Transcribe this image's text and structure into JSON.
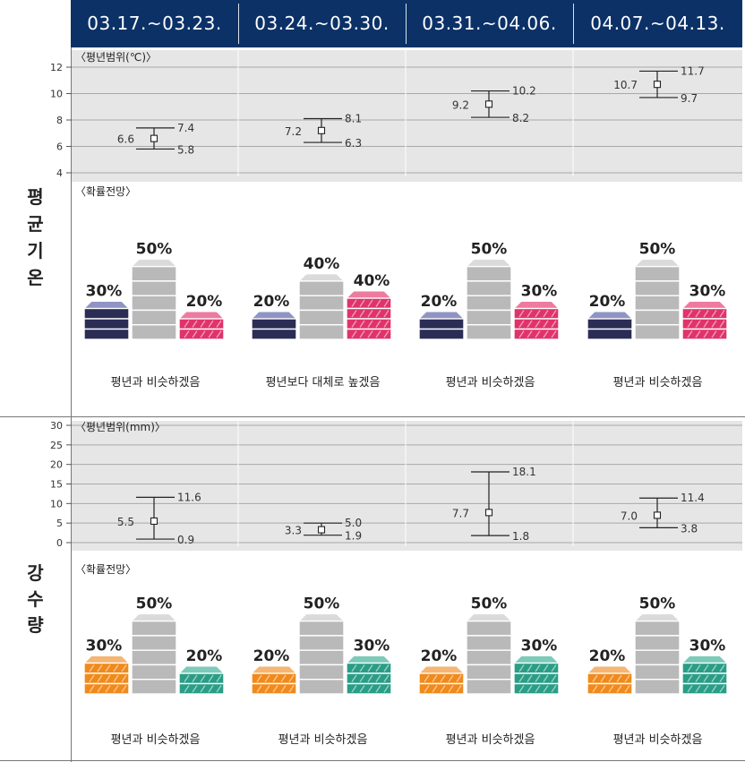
{
  "periods": [
    "03.17.~03.23.",
    "03.24.~03.30.",
    "03.31.~04.06.",
    "04.07.~04.13."
  ],
  "temperature": {
    "section_label": [
      "평",
      "균",
      "기",
      "온"
    ],
    "range_caption": "〈평년범위(℃)〉",
    "forecast_caption": "〈확률전망〉"
  },
  "precipitation": {
    "section_label": [
      "강",
      "수",
      "량"
    ],
    "range_caption": "〈평년범위(mm)〉",
    "forecast_caption": "〈확률전망〉"
  },
  "colors": {
    "header_bg": "#0b3167",
    "temp_below": "#2b2d55",
    "temp_below_top": "#8f94c4",
    "temp_above": "#e0336b",
    "temp_above_top": "#ee7aa0",
    "prec_below": "#f08a1c",
    "prec_below_top": "#f6b573",
    "prec_above": "#2a9d86",
    "prec_above_top": "#7ccab9",
    "normal": "#b9b9b9",
    "normal_top": "#dadada"
  },
  "chart_data": [
    {
      "type": "errorbar",
      "title": "평균기온 평년범위",
      "ylabel": "℃",
      "ylim": [
        4,
        12
      ],
      "yticks": [
        4,
        6,
        8,
        10,
        12
      ],
      "categories": [
        "03.17.~03.23.",
        "03.24.~03.30.",
        "03.31.~04.06.",
        "04.07.~04.13."
      ],
      "mid": [
        6.6,
        7.2,
        9.2,
        10.7
      ],
      "upper": [
        7.4,
        8.1,
        10.2,
        11.7
      ],
      "lower": [
        5.8,
        6.3,
        8.2,
        9.7
      ],
      "labels": {
        "mid": [
          "6.6",
          "7.2",
          "9.2",
          "10.7"
        ],
        "upper": [
          "7.4",
          "8.1",
          "10.2",
          "11.7"
        ],
        "lower": [
          "5.8",
          "6.3",
          "8.2",
          "9.7"
        ]
      }
    },
    {
      "type": "stacked-blocks",
      "title": "평균기온 확률전망",
      "categories": [
        "03.17.~03.23.",
        "03.24.~03.30.",
        "03.31.~04.06.",
        "04.07.~04.13."
      ],
      "below": [
        30,
        20,
        20,
        20
      ],
      "normal": [
        50,
        40,
        50,
        50
      ],
      "above": [
        20,
        40,
        30,
        30
      ],
      "pct_labels": {
        "below": [
          "30%",
          "20%",
          "20%",
          "20%"
        ],
        "normal": [
          "50%",
          "40%",
          "50%",
          "50%"
        ],
        "above": [
          "20%",
          "40%",
          "30%",
          "30%"
        ]
      },
      "outlook": [
        "평년과 비슷하겠음",
        "평년보다 대체로 높겠음",
        "평년과 비슷하겠음",
        "평년과 비슷하겠음"
      ]
    },
    {
      "type": "errorbar",
      "title": "강수량 평년범위",
      "ylabel": "mm",
      "ylim": [
        0,
        30
      ],
      "yticks": [
        0,
        5,
        10,
        15,
        20,
        25,
        30
      ],
      "categories": [
        "03.17.~03.23.",
        "03.24.~03.30.",
        "03.31.~04.06.",
        "04.07.~04.13."
      ],
      "mid": [
        5.5,
        3.3,
        7.7,
        7.0
      ],
      "upper": [
        11.6,
        5.0,
        18.1,
        11.4
      ],
      "lower": [
        0.9,
        1.9,
        1.8,
        3.8
      ],
      "labels": {
        "mid": [
          "5.5",
          "3.3",
          "7.7",
          "7.0"
        ],
        "upper": [
          "11.6",
          "5.0",
          "18.1",
          "11.4"
        ],
        "lower": [
          "0.9",
          "1.9",
          "1.8",
          "3.8"
        ]
      }
    },
    {
      "type": "stacked-blocks",
      "title": "강수량 확률전망",
      "categories": [
        "03.17.~03.23.",
        "03.24.~03.30.",
        "03.31.~04.06.",
        "04.07.~04.13."
      ],
      "below": [
        30,
        20,
        20,
        20
      ],
      "normal": [
        50,
        50,
        50,
        50
      ],
      "above": [
        20,
        30,
        30,
        30
      ],
      "pct_labels": {
        "below": [
          "30%",
          "20%",
          "20%",
          "20%"
        ],
        "normal": [
          "50%",
          "50%",
          "50%",
          "50%"
        ],
        "above": [
          "20%",
          "30%",
          "30%",
          "30%"
        ]
      },
      "outlook": [
        "평년과 비슷하겠음",
        "평년과 비슷하겠음",
        "평년과 비슷하겠음",
        "평년과 비슷하겠음"
      ]
    }
  ]
}
